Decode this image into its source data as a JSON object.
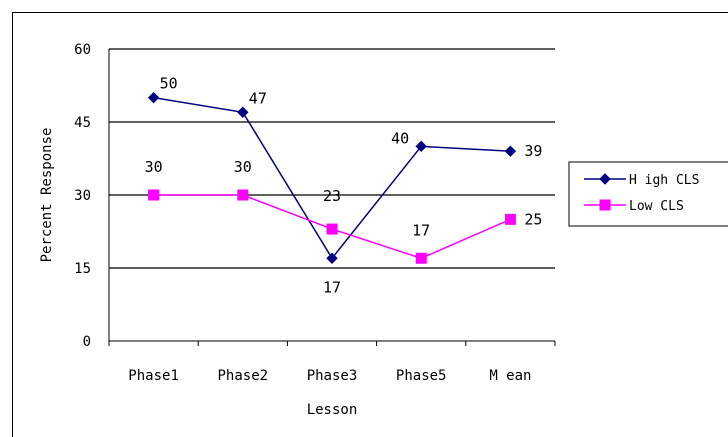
{
  "chart_data": {
    "type": "line",
    "categories": [
      "Phase1",
      "Phase2",
      "Phase3",
      "Phase5",
      "M ean"
    ],
    "series": [
      {
        "name": "H igh CLS",
        "values": [
          50,
          47,
          17,
          40,
          39
        ],
        "color": "#000080",
        "marker": "diamond"
      },
      {
        "name": "Low  CLS",
        "values": [
          30,
          30,
          23,
          17,
          25
        ],
        "color": "#ff00ff",
        "marker": "square"
      }
    ],
    "data_labels": {
      "high": [
        "50",
        "47",
        "17",
        "40",
        "39"
      ],
      "low": [
        "30",
        "30",
        "23",
        "17",
        "25"
      ]
    },
    "xlabel": "Lesson",
    "ylabel": "Percent Response",
    "ylim": [
      0,
      60
    ],
    "yticks": [
      0,
      15,
      30,
      45,
      60
    ],
    "grid": "horizontal",
    "legend": "right"
  }
}
